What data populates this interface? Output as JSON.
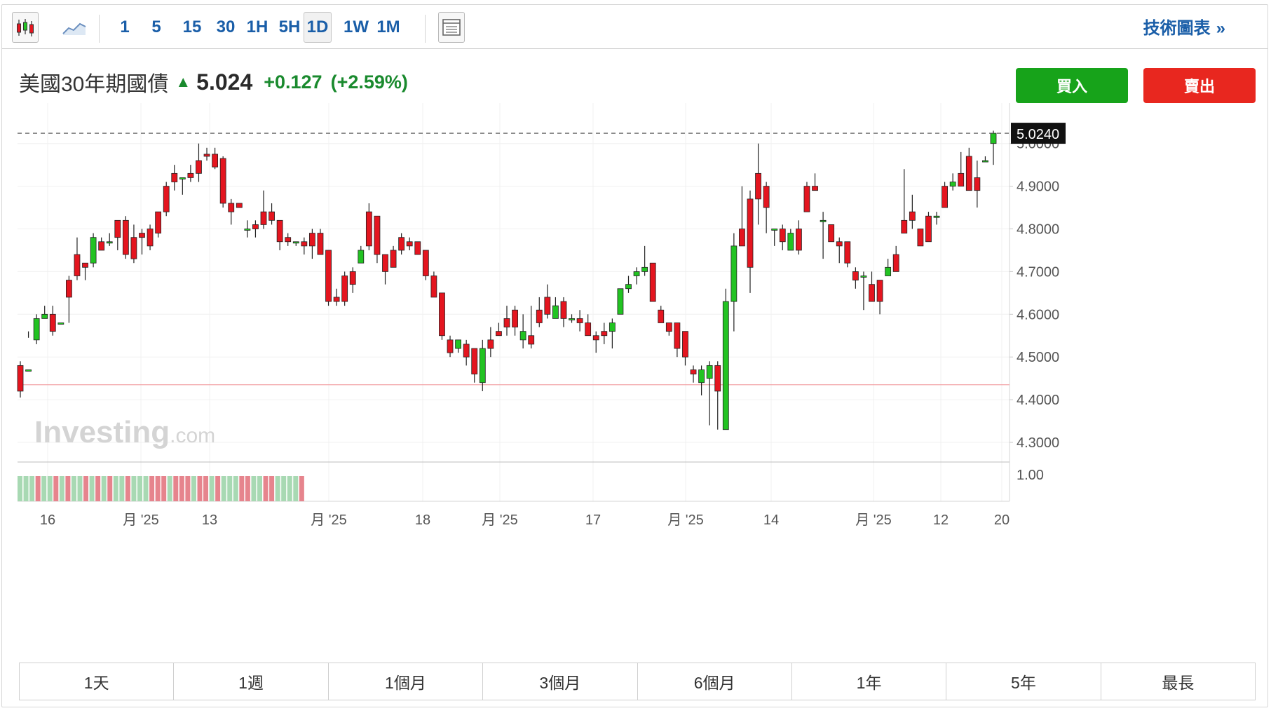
{
  "toolbar": {
    "intervals": [
      "1",
      "5",
      "15",
      "30",
      "1H",
      "5H",
      "1D",
      "1W",
      "1M"
    ],
    "active_interval": "1D",
    "tech_chart_label": "技術圖表",
    "tech_chart_chevron": "»",
    "icons": [
      "candlestick-icon",
      "area-chart-icon",
      "layout-icon"
    ]
  },
  "header": {
    "instrument": "美國30年期國債",
    "last": "5.024",
    "change": "+0.127",
    "change_pct": "(+2.59%)",
    "up_color": "#1a8a2e"
  },
  "buttons": {
    "buy": "買入",
    "sell": "賣出"
  },
  "colors": {
    "up": "#22c322",
    "down": "#e4151f",
    "vol_up": "#a8d9b3",
    "vol_down": "#e6848d",
    "ref_line": "#f3a6a9"
  },
  "watermark": {
    "brand": "Investing",
    "suffix": ".com"
  },
  "ranges": [
    "1天",
    "1週",
    "1個月",
    "3個月",
    "6個月",
    "1年",
    "5年",
    "最長"
  ],
  "chart_data": {
    "type": "candlestick",
    "current_price_label": "5.0240",
    "ylim": [
      4.28,
      5.04
    ],
    "y_ticks": [
      "4.3000",
      "4.4000",
      "4.5000",
      "4.6000",
      "4.7000",
      "4.8000",
      "4.9000",
      "5.0000"
    ],
    "x_ticks": [
      "16",
      "月 '25",
      "13",
      "月 '25",
      "18",
      "月 '25",
      "17",
      "月 '25",
      "14",
      "月 '25",
      "12",
      "20"
    ],
    "volume_axis_label": "1.00",
    "reference_line": 4.435,
    "grid": true,
    "candles": [
      [
        4.48,
        4.42,
        4.49,
        4.405
      ],
      [
        4.47,
        4.47,
        4.56,
        4.545
      ],
      [
        4.54,
        4.59,
        4.6,
        4.53
      ],
      [
        4.59,
        4.6,
        4.62,
        4.59
      ],
      [
        4.6,
        4.56,
        4.62,
        4.55
      ],
      [
        4.58,
        4.58,
        4.58,
        4.58
      ],
      [
        4.68,
        4.64,
        4.69,
        4.58
      ],
      [
        4.74,
        4.69,
        4.78,
        4.68
      ],
      [
        4.72,
        4.71,
        4.71,
        4.68
      ],
      [
        4.72,
        4.78,
        4.79,
        4.71
      ],
      [
        4.77,
        4.75,
        4.78,
        4.76
      ],
      [
        4.77,
        4.77,
        4.79,
        4.76
      ],
      [
        4.82,
        4.78,
        4.82,
        4.75
      ],
      [
        4.82,
        4.74,
        4.83,
        4.73
      ],
      [
        4.78,
        4.73,
        4.81,
        4.72
      ],
      [
        4.79,
        4.78,
        4.8,
        4.74
      ],
      [
        4.8,
        4.76,
        4.81,
        4.75
      ],
      [
        4.84,
        4.79,
        4.84,
        4.78
      ],
      [
        4.9,
        4.84,
        4.91,
        4.83
      ],
      [
        4.93,
        4.91,
        4.95,
        4.89
      ],
      [
        4.92,
        4.92,
        4.92,
        4.88
      ],
      [
        4.93,
        4.92,
        4.95,
        4.91
      ],
      [
        4.96,
        4.93,
        5.0,
        4.91
      ],
      [
        4.975,
        4.97,
        4.99,
        4.96
      ],
      [
        4.975,
        4.945,
        4.99,
        4.94
      ],
      [
        4.965,
        4.86,
        4.97,
        4.85
      ],
      [
        4.86,
        4.84,
        4.87,
        4.81
      ],
      [
        4.86,
        4.85,
        4.86,
        4.85
      ],
      [
        4.8,
        4.8,
        4.82,
        4.78
      ],
      [
        4.81,
        4.8,
        4.82,
        4.78
      ],
      [
        4.84,
        4.81,
        4.89,
        4.8
      ],
      [
        4.84,
        4.82,
        4.86,
        4.81
      ],
      [
        4.82,
        4.77,
        4.82,
        4.75
      ],
      [
        4.78,
        4.77,
        4.79,
        4.76
      ],
      [
        4.77,
        4.77,
        4.77,
        4.76
      ],
      [
        4.77,
        4.76,
        4.78,
        4.74
      ],
      [
        4.79,
        4.76,
        4.8,
        4.73
      ],
      [
        4.79,
        4.74,
        4.8,
        4.77
      ],
      [
        4.75,
        4.63,
        4.75,
        4.62
      ],
      [
        4.64,
        4.63,
        4.66,
        4.62
      ],
      [
        4.69,
        4.63,
        4.7,
        4.62
      ],
      [
        4.7,
        4.67,
        4.71,
        4.65
      ],
      [
        4.72,
        4.75,
        4.76,
        4.72
      ],
      [
        4.84,
        4.76,
        4.86,
        4.75
      ],
      [
        4.83,
        4.74,
        4.83,
        4.72
      ],
      [
        4.74,
        4.7,
        4.74,
        4.67
      ],
      [
        4.75,
        4.71,
        4.76,
        4.71
      ],
      [
        4.78,
        4.75,
        4.79,
        4.74
      ],
      [
        4.77,
        4.76,
        4.78,
        4.75
      ],
      [
        4.77,
        4.74,
        4.77,
        4.74
      ],
      [
        4.75,
        4.69,
        4.75,
        4.68
      ],
      [
        4.69,
        4.64,
        4.7,
        4.64
      ],
      [
        4.65,
        4.55,
        4.65,
        4.54
      ],
      [
        4.54,
        4.51,
        4.55,
        4.5
      ],
      [
        4.52,
        4.54,
        4.54,
        4.51
      ],
      [
        4.53,
        4.5,
        4.54,
        4.48
      ],
      [
        4.52,
        4.46,
        4.52,
        4.44
      ],
      [
        4.44,
        4.52,
        4.54,
        4.42
      ],
      [
        4.54,
        4.52,
        4.57,
        4.5
      ],
      [
        4.56,
        4.55,
        4.58,
        4.55
      ],
      [
        4.59,
        4.57,
        4.62,
        4.55
      ],
      [
        4.61,
        4.57,
        4.62,
        4.55
      ],
      [
        4.54,
        4.56,
        4.6,
        4.52
      ],
      [
        4.55,
        4.53,
        4.62,
        4.52
      ],
      [
        4.61,
        4.58,
        4.64,
        4.57
      ],
      [
        4.64,
        4.6,
        4.67,
        4.59
      ],
      [
        4.59,
        4.62,
        4.64,
        4.59
      ],
      [
        4.63,
        4.59,
        4.64,
        4.57
      ],
      [
        4.59,
        4.59,
        4.6,
        4.58
      ],
      [
        4.59,
        4.58,
        4.61,
        4.56
      ],
      [
        4.58,
        4.55,
        4.6,
        4.55
      ],
      [
        4.55,
        4.54,
        4.56,
        4.51
      ],
      [
        4.56,
        4.55,
        4.58,
        4.53
      ],
      [
        4.56,
        4.58,
        4.59,
        4.52
      ],
      [
        4.6,
        4.66,
        4.66,
        4.6
      ],
      [
        4.66,
        4.67,
        4.69,
        4.65
      ],
      [
        4.69,
        4.7,
        4.71,
        4.67
      ],
      [
        4.7,
        4.71,
        4.76,
        4.69
      ],
      [
        4.72,
        4.63,
        4.72,
        4.63
      ],
      [
        4.61,
        4.58,
        4.62,
        4.58
      ],
      [
        4.58,
        4.56,
        4.58,
        4.55
      ],
      [
        4.58,
        4.52,
        4.58,
        4.5
      ],
      [
        4.56,
        4.5,
        4.56,
        4.48
      ],
      [
        4.47,
        4.46,
        4.48,
        4.44
      ],
      [
        4.44,
        4.47,
        4.48,
        4.41
      ],
      [
        4.45,
        4.48,
        4.49,
        4.34
      ],
      [
        4.48,
        4.42,
        4.49,
        4.33
      ],
      [
        4.33,
        4.63,
        4.66,
        4.33
      ],
      [
        4.63,
        4.76,
        4.79,
        4.56
      ],
      [
        4.8,
        4.76,
        4.9,
        4.77
      ],
      [
        4.87,
        4.71,
        4.89,
        4.65
      ],
      [
        4.93,
        4.87,
        5.0,
        4.81
      ],
      [
        4.9,
        4.85,
        4.91,
        4.79
      ],
      [
        4.8,
        4.8,
        4.8,
        4.76
      ],
      [
        4.8,
        4.77,
        4.81,
        4.75
      ],
      [
        4.75,
        4.79,
        4.8,
        4.75
      ],
      [
        4.8,
        4.75,
        4.82,
        4.74
      ],
      [
        4.9,
        4.84,
        4.91,
        4.85
      ],
      [
        4.9,
        4.89,
        4.93,
        4.89
      ],
      [
        4.82,
        4.82,
        4.84,
        4.73
      ],
      [
        4.81,
        4.77,
        4.81,
        4.77
      ],
      [
        4.77,
        4.76,
        4.78,
        4.72
      ],
      [
        4.77,
        4.72,
        4.77,
        4.71
      ],
      [
        4.7,
        4.68,
        4.71,
        4.66
      ],
      [
        4.69,
        4.69,
        4.7,
        4.61
      ],
      [
        4.67,
        4.63,
        4.7,
        4.63
      ],
      [
        4.68,
        4.63,
        4.68,
        4.6
      ],
      [
        4.69,
        4.71,
        4.73,
        4.7
      ],
      [
        4.74,
        4.7,
        4.76,
        4.7
      ],
      [
        4.82,
        4.79,
        4.94,
        4.8
      ],
      [
        4.84,
        4.82,
        4.88,
        4.8
      ],
      [
        4.8,
        4.76,
        4.8,
        4.76
      ],
      [
        4.83,
        4.77,
        4.84,
        4.77
      ],
      [
        4.83,
        4.83,
        4.84,
        4.81
      ],
      [
        4.9,
        4.85,
        4.91,
        4.85
      ],
      [
        4.9,
        4.91,
        4.93,
        4.89
      ],
      [
        4.93,
        4.9,
        4.98,
        4.91
      ],
      [
        4.97,
        4.89,
        4.99,
        4.89
      ],
      [
        4.92,
        4.89,
        4.96,
        4.85
      ],
      [
        4.96,
        4.96,
        4.97,
        4.96
      ],
      [
        5.0,
        5.024,
        5.03,
        4.95
      ]
    ],
    "volume_colors": [
      "up",
      "up",
      "up",
      "down",
      "up",
      "up",
      "down",
      "up",
      "down",
      "up",
      "up",
      "down",
      "up",
      "down",
      "up",
      "down",
      "up",
      "up",
      "down",
      "up",
      "up",
      "up",
      "down",
      "down",
      "down",
      "up",
      "down",
      "down",
      "down",
      "up",
      "down",
      "down",
      "up",
      "down",
      "up",
      "up",
      "up",
      "down",
      "down",
      "up",
      "up",
      "down",
      "down",
      "up",
      "up",
      "up",
      "up",
      "down"
    ]
  }
}
